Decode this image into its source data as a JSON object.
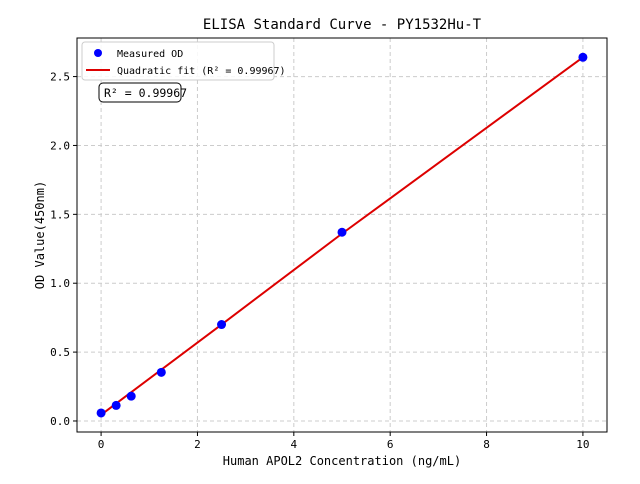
{
  "chart_data": {
    "type": "scatter",
    "title": "ELISA Standard Curve - PY1532Hu-T",
    "xlabel": "Human APOL2 Concentration (ng/mL)",
    "ylabel": "OD Value(450nm)",
    "xlim": [
      -0.5,
      10.5
    ],
    "ylim": [
      -0.08,
      2.78
    ],
    "xticks": [
      0,
      2,
      4,
      6,
      8,
      10
    ],
    "yticks": [
      0.0,
      0.5,
      1.0,
      1.5,
      2.0,
      2.5
    ],
    "grid": true,
    "legend_position": "top-left",
    "series": [
      {
        "name": "Measured OD",
        "kind": "points",
        "color": "#0000ff",
        "x": [
          0,
          0.3125,
          0.625,
          1.25,
          2.5,
          5,
          10
        ],
        "y": [
          0.058,
          0.113,
          0.18,
          0.353,
          0.7,
          1.37,
          2.64
        ]
      },
      {
        "name": "Quadratic fit (R² = 0.99967)",
        "kind": "line",
        "color": "#dd0000",
        "x": [
          0,
          2.5,
          5,
          7.5,
          10
        ],
        "y": [
          0.045,
          0.7,
          1.36,
          2.0,
          2.64
        ]
      }
    ],
    "annotation": "R² = 0.99967"
  }
}
